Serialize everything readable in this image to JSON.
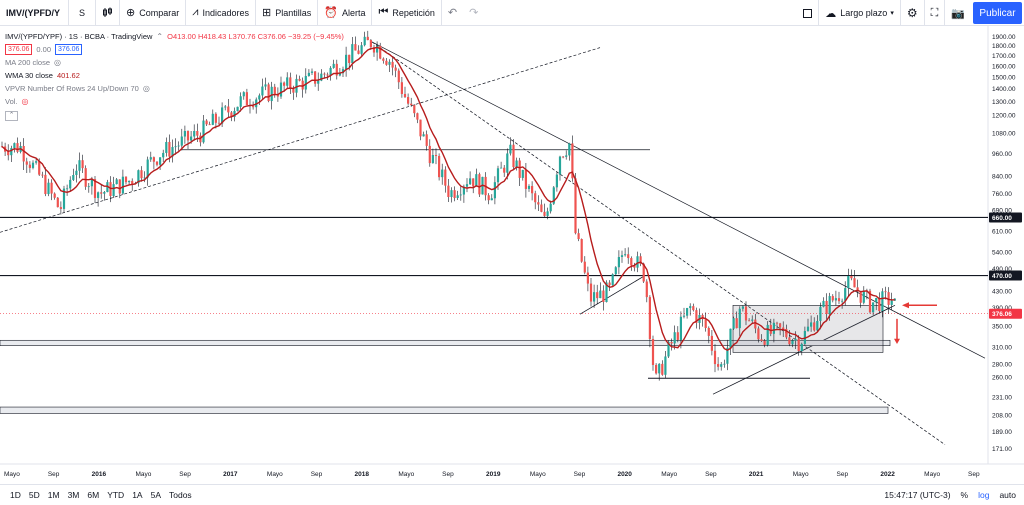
{
  "toolbar": {
    "symbol": "IMV/(YPFD/Y",
    "interval": "S",
    "compare": "Comparar",
    "indicators": "Indicadores",
    "templates": "Plantillas",
    "alert": "Alerta",
    "replay": "Repetición",
    "layout": "Largo plazo",
    "publish": "Publicar"
  },
  "legend": {
    "title": "IMV/(YPFD/YPF) · 1S · BCBA · TradingView",
    "ohlc": "O413.00  H418.43  L370.76  C376.06  −39.25 (−9.45%)",
    "bid": "376.06",
    "spread": "0.00",
    "ask": "376.06",
    "ma200": "MA 200 close",
    "wma30": "WMA 30 close",
    "wma30_value": "401.62",
    "vpvr": "VPVR Number Of Rows 24 Up/Down 70",
    "vol": "Vol."
  },
  "chart_data": {
    "type": "candlestick",
    "price_axis_ticks": [
      "1900.00",
      "1800.00",
      "1700.00",
      "1600.00",
      "1500.00",
      "1400.00",
      "1300.00",
      "1200.00",
      "1080.00",
      "960.00",
      "840.00",
      "760.00",
      "690.00",
      "660.00",
      "610.00",
      "540.00",
      "490.00",
      "470.00",
      "430.00",
      "390.00",
      "376.06",
      "350.00",
      "310.00",
      "280.00",
      "260.00",
      "231.00",
      "208.00",
      "189.00",
      "171.00"
    ],
    "time_axis_ticks": [
      "Mayo",
      "Sep",
      "2016",
      "Mayo",
      "Sep",
      "2017",
      "Mayo",
      "Sep",
      "2018",
      "Mayo",
      "Sep",
      "2019",
      "Mayo",
      "Sep",
      "2020",
      "Mayo",
      "Sep",
      "2021",
      "Mayo",
      "Sep",
      "2022",
      "Mayo",
      "Sep"
    ],
    "horizontal_levels": [
      {
        "price": 660.0,
        "label": "660.00"
      },
      {
        "price": 470.0,
        "label": "470.00"
      }
    ],
    "last_price": {
      "price": 376.06,
      "label": "376.06"
    },
    "series": [
      {
        "name": "WMA 30 close",
        "value": 401.62,
        "color": "#b71c1c"
      }
    ],
    "colors": {
      "up": "#26a69a",
      "down": "#ef5350",
      "wick": "#131722",
      "wma": "#b71c1c",
      "arrow": "#e53935"
    }
  },
  "bottom": {
    "timeframes": [
      "1D",
      "5D",
      "1M",
      "3M",
      "6M",
      "YTD",
      "1A",
      "5A",
      "Todos"
    ],
    "clock": "15:47:17 (UTC-3)",
    "percent": "%",
    "log": "log",
    "auto": "auto"
  }
}
